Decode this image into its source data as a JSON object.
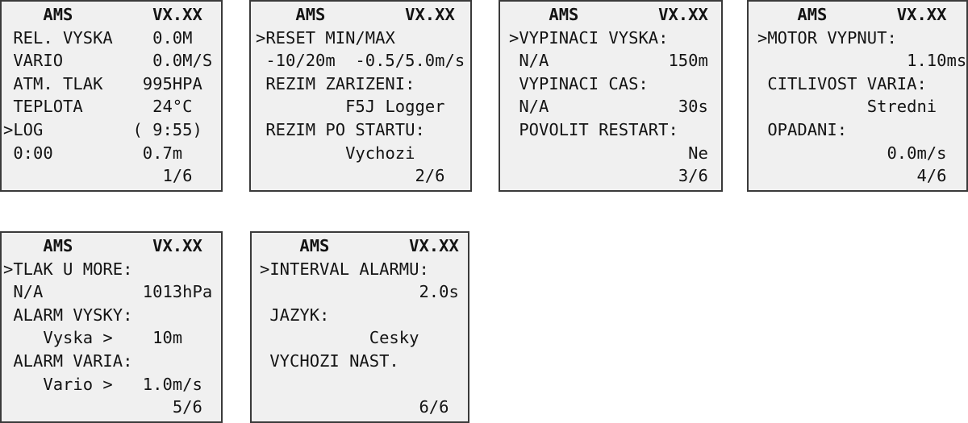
{
  "screens": [
    {
      "title": "AMS",
      "version": "VX.XX",
      "lines": [
        "REL. VYSKA",
        "0.0M",
        "VARIO",
        "0.0M/S",
        "ATM. TLAK",
        "995HPA",
        "TEPLOTA",
        "24°C",
        ">LOG",
        "( 9:55)",
        "0:00",
        "0.7m"
      ],
      "page": "1/6"
    },
    {
      "title": "AMS",
      "version": "VX.XX",
      "lines": [
        ">RESET MIN/MAX",
        "-10/20m",
        "-0.5/5.0m/s",
        "REZIM ZARIZENI:",
        "F5J Logger",
        "REZIM PO STARTU:",
        "Vychozi"
      ],
      "page": "2/6"
    },
    {
      "title": "AMS",
      "version": "VX.XX",
      "lines": [
        ">VYPINACI VYSKA:",
        "N/A",
        "150m",
        "VYPINACI CAS:",
        "N/A",
        "30s",
        "POVOLIT RESTART:",
        "Ne"
      ],
      "page": "3/6"
    },
    {
      "title": "AMS",
      "version": "VX.XX",
      "lines": [
        ">MOTOR VYPNUT:",
        "1.10ms",
        "CITLIVOST VARIA:",
        "Stredni",
        "OPADANI:",
        "0.0m/s"
      ],
      "page": "4/6"
    },
    {
      "title": "AMS",
      "version": "VX.XX",
      "lines": [
        ">TLAK U MORE:",
        "N/A",
        "1013hPa",
        "ALARM VYSKY:",
        "Vyska >",
        "10m",
        "ALARM VARIA:",
        "Vario >",
        "1.0m/s"
      ],
      "page": "5/6"
    },
    {
      "title": "AMS",
      "version": "VX.XX",
      "lines": [
        ">INTERVAL ALARMU:",
        "2.0s",
        "JAZYK:",
        "Cesky",
        "VYCHOZI NAST."
      ],
      "page": "6/6"
    }
  ]
}
